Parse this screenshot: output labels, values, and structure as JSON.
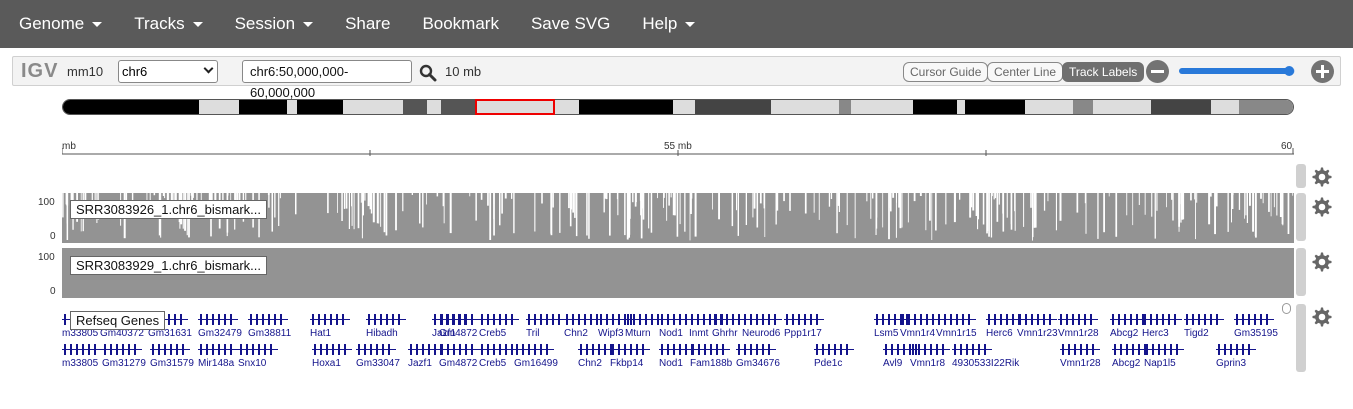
{
  "navbar": {
    "items": [
      {
        "label": "Genome",
        "dropdown": true
      },
      {
        "label": "Tracks",
        "dropdown": true
      },
      {
        "label": "Session",
        "dropdown": true
      },
      {
        "label": "Share",
        "dropdown": false
      },
      {
        "label": "Bookmark",
        "dropdown": false
      },
      {
        "label": "Save SVG",
        "dropdown": false
      },
      {
        "label": "Help",
        "dropdown": true
      }
    ]
  },
  "controls": {
    "logo": "IGV",
    "genome": "mm10",
    "chromosome": "chr6",
    "locus": "chr6:50,000,000-60,000,000",
    "window_size": "10 mb",
    "cursor_guide": "Cursor Guide",
    "center_line": "Center Line",
    "track_labels": "Track Labels",
    "zoom_level": 0.95
  },
  "ruler": {
    "left_label": "mb",
    "mid_label": "55 mb",
    "right_label": "60"
  },
  "tracks": [
    {
      "name": "SRR3083926_1.chr6_bismark...",
      "max": "100",
      "min": "0"
    },
    {
      "name": "SRR3083929_1.chr6_bismark...",
      "max": "100",
      "min": "0"
    }
  ],
  "gene_track": {
    "name": "Refseq Genes",
    "count_badge": "0",
    "row1": [
      "m33805",
      "Gm40372",
      "Gm31631",
      "Gm32479",
      "Gm38811",
      "Hat1",
      "Hibadh",
      "Jazf1",
      "Gm4872",
      "Creb5",
      "Tril",
      "Chn2",
      "Wipf3",
      "Mturn",
      "Nod1",
      "Inmt",
      "Ghrhr",
      "Neurod6",
      "Ppp1r17",
      "Lsm5",
      "Vmn1r4",
      "Vmn1r15",
      "Herc6",
      "Vmn1r23",
      "Vmn1r28",
      "Abcg2",
      "Herc3",
      "Tigd2",
      "Gm35195"
    ],
    "row2": [
      "m33805",
      "Gm31279",
      "Gm31579",
      "Mir148a",
      "Snx10",
      "Hoxa1",
      "Gm33047",
      "Jazf1",
      "Gm4872",
      "Creb5",
      "Gm16499",
      "Chn2",
      "Fkbp14",
      "Nod1",
      "Fam188b",
      "Gm34676",
      "Pde1c",
      "Avl9",
      "Vmn1r8",
      "4930533I22Rik",
      "Vmn1r28",
      "Abcg2",
      "Nap1l5",
      "Gprin3"
    ]
  },
  "colors": {
    "navbar": "#5a5a5a",
    "signal": "#939393",
    "gene": "#14148c",
    "ideogram_view": "#e00000"
  }
}
